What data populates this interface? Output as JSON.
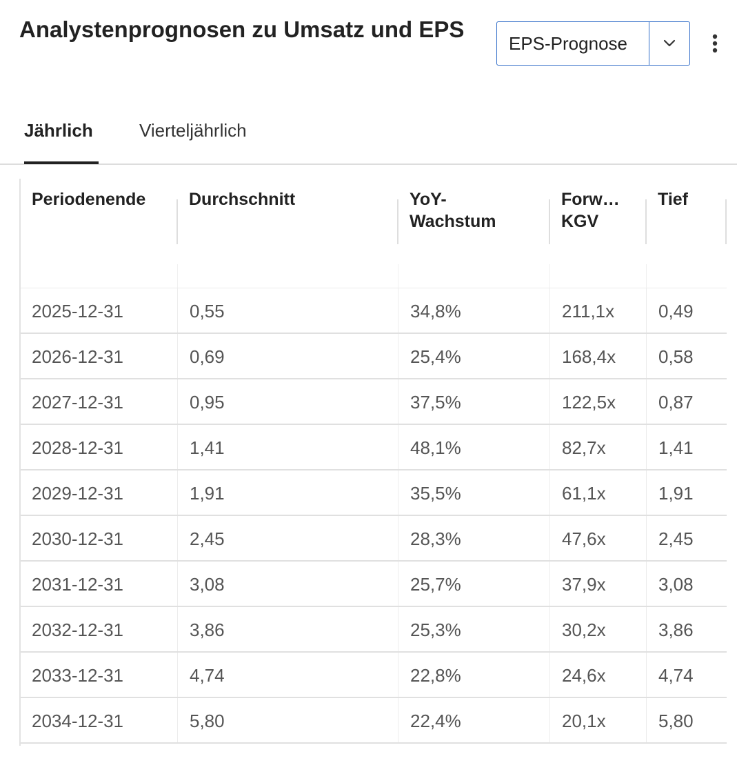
{
  "header": {
    "title": "Analystenprognosen zu Umsatz und EPS",
    "dropdown_value": "EPS-Prognose"
  },
  "tabs": [
    {
      "label": "Jährlich",
      "active": true
    },
    {
      "label": "Vierteljährlich",
      "active": false
    }
  ],
  "table": {
    "columns": [
      "Periodenende",
      "Durchschnitt",
      "YoY-Wachstum",
      "Forw… KGV",
      "Tief"
    ],
    "rows": [
      [
        "2025-12-31",
        "0,55",
        "34,8%",
        "211,1x",
        "0,49"
      ],
      [
        "2026-12-31",
        "0,69",
        "25,4%",
        "168,4x",
        "0,58"
      ],
      [
        "2027-12-31",
        "0,95",
        "37,5%",
        "122,5x",
        "0,87"
      ],
      [
        "2028-12-31",
        "1,41",
        "48,1%",
        "82,7x",
        "1,41"
      ],
      [
        "2029-12-31",
        "1,91",
        "35,5%",
        "61,1x",
        "1,91"
      ],
      [
        "2030-12-31",
        "2,45",
        "28,3%",
        "47,6x",
        "2,45"
      ],
      [
        "2031-12-31",
        "3,08",
        "25,7%",
        "37,9x",
        "3,08"
      ],
      [
        "2032-12-31",
        "3,86",
        "25,3%",
        "30,2x",
        "3,86"
      ],
      [
        "2033-12-31",
        "4,74",
        "22,8%",
        "24,6x",
        "4,74"
      ],
      [
        "2034-12-31",
        "5,80",
        "22,4%",
        "20,1x",
        "5,80"
      ]
    ]
  },
  "colors": {
    "accent": "#2f6cc8",
    "text": "#222222",
    "muted": "#555555",
    "divider": "#e0e0e0"
  },
  "icons": {
    "dropdown": "chevron-down-icon",
    "menu": "kebab-menu-icon"
  }
}
